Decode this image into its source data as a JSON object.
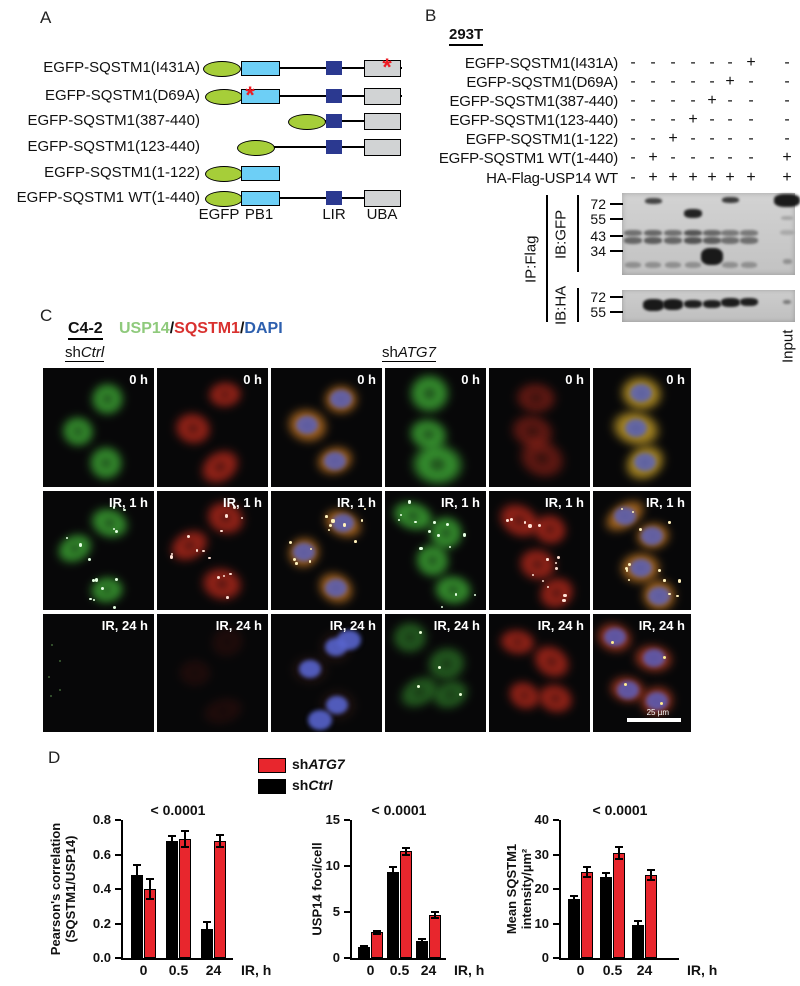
{
  "figure": {
    "panel_a": {
      "label": "A",
      "mutation_marker": "*",
      "constructs": [
        {
          "label": "EGFP-SQSTM1(I431A)",
          "egfp_x": 203,
          "pb1": true,
          "pb1_ast": false,
          "lir": true,
          "uba": true,
          "uba_ast": true,
          "line": [
            260,
            402
          ]
        },
        {
          "label": "EGFP-SQSTM1(D69A)",
          "egfp_x": 205,
          "pb1": true,
          "pb1_ast": true,
          "lir": true,
          "uba": true,
          "uba_ast": false,
          "line": [
            260,
            402
          ]
        },
        {
          "label": "EGFP-SQSTM1(387-440)",
          "egfp_x": 288,
          "pb1": false,
          "pb1_ast": false,
          "lir": true,
          "uba": true,
          "uba_ast": false,
          "line": [
            300,
            370
          ]
        },
        {
          "label": "EGFP-SQSTM1(123-440)",
          "egfp_x": 237,
          "pb1": false,
          "pb1_ast": false,
          "lir": true,
          "uba": true,
          "uba_ast": false,
          "line": [
            260,
            370
          ]
        },
        {
          "label": "EGFP-SQSTM1(1-122)",
          "egfp_x": 205,
          "pb1": true,
          "pb1_ast": false,
          "lir": false,
          "uba": false,
          "uba_ast": false,
          "line": null
        },
        {
          "label": "EGFP-SQSTM1 WT(1-440)",
          "egfp_x": 205,
          "pb1": true,
          "pb1_ast": false,
          "lir": true,
          "uba": true,
          "uba_ast": false,
          "line": [
            260,
            370
          ]
        }
      ],
      "domain_labels": [
        "EGFP",
        "PB1",
        "LIR",
        "UBA"
      ],
      "colors": {
        "egfp": "#a6ce39",
        "pb1": "#6dcff6",
        "lir": "#2b3990",
        "uba": "#d1d3d4",
        "asterisk": "#ed1c24"
      }
    },
    "panel_b": {
      "label": "B",
      "cell_line": "293T",
      "rows": [
        {
          "label": "EGFP-SQSTM1(I431A)",
          "lanes": [
            "-",
            "-",
            "-",
            "-",
            "-",
            "-",
            "+"
          ],
          "input": "-"
        },
        {
          "label": "EGFP-SQSTM1(D69A)",
          "lanes": [
            "-",
            "-",
            "-",
            "-",
            "-",
            "+",
            "-"
          ],
          "input": "-"
        },
        {
          "label": "EGFP-SQSTM1(387-440)",
          "lanes": [
            "-",
            "-",
            "-",
            "-",
            "+",
            "-",
            "-"
          ],
          "input": "-"
        },
        {
          "label": "EGFP-SQSTM1(123-440)",
          "lanes": [
            "-",
            "-",
            "-",
            "+",
            "-",
            "-",
            "-"
          ],
          "input": "-"
        },
        {
          "label": "EGFP-SQSTM1(1-122)",
          "lanes": [
            "-",
            "-",
            "+",
            "-",
            "-",
            "-",
            "-"
          ],
          "input": "-"
        },
        {
          "label": "EGFP-SQSTM1 WT(1-440)",
          "lanes": [
            "-",
            "+",
            "-",
            "-",
            "-",
            "-",
            "-"
          ],
          "input": "+"
        },
        {
          "label": "HA-Flag-USP14 WT",
          "lanes": [
            "-",
            "+",
            "+",
            "+",
            "+",
            "+",
            "+"
          ],
          "input": "+"
        }
      ],
      "ip_label": "IP:Flag",
      "input_label": "Input",
      "blots": [
        {
          "ib": "IB:GFP",
          "mw": [
            "72",
            "55",
            "43",
            "34"
          ]
        },
        {
          "ib": "IB:HA",
          "mw": [
            "72",
            "55"
          ]
        }
      ],
      "gfp_bands": [
        {
          "lane": 2,
          "y": 5,
          "w": 17,
          "h": 6,
          "o": 0.75
        },
        {
          "lane": 6,
          "y": 4,
          "w": 17,
          "h": 6,
          "o": 0.8
        },
        {
          "lane": 8,
          "y": 1,
          "w": 26,
          "h": 13,
          "o": 0.97
        },
        {
          "lane": 4,
          "y": 16,
          "w": 18,
          "h": 9,
          "o": 0.93
        },
        {
          "lane": 1,
          "y": 37,
          "w": 18,
          "h": 6,
          "o": 0.5
        },
        {
          "lane": 1,
          "y": 44,
          "w": 18,
          "h": 7,
          "o": 0.55
        },
        {
          "lane": 2,
          "y": 37,
          "w": 18,
          "h": 6,
          "o": 0.55
        },
        {
          "lane": 2,
          "y": 44,
          "w": 18,
          "h": 7,
          "o": 0.6
        },
        {
          "lane": 3,
          "y": 37,
          "w": 18,
          "h": 6,
          "o": 0.5
        },
        {
          "lane": 3,
          "y": 44,
          "w": 18,
          "h": 7,
          "o": 0.55
        },
        {
          "lane": 4,
          "y": 37,
          "w": 18,
          "h": 6,
          "o": 0.65
        },
        {
          "lane": 4,
          "y": 44,
          "w": 18,
          "h": 7,
          "o": 0.65
        },
        {
          "lane": 5,
          "y": 37,
          "w": 18,
          "h": 6,
          "o": 0.55
        },
        {
          "lane": 5,
          "y": 44,
          "w": 18,
          "h": 7,
          "o": 0.6
        },
        {
          "lane": 6,
          "y": 37,
          "w": 18,
          "h": 6,
          "o": 0.45
        },
        {
          "lane": 6,
          "y": 44,
          "w": 18,
          "h": 7,
          "o": 0.5
        },
        {
          "lane": 7,
          "y": 37,
          "w": 18,
          "h": 6,
          "o": 0.45
        },
        {
          "lane": 7,
          "y": 44,
          "w": 18,
          "h": 7,
          "o": 0.5
        },
        {
          "lane": 8,
          "y": 23,
          "w": 12,
          "h": 4,
          "o": 0.22
        },
        {
          "lane": 8,
          "y": 37,
          "w": 14,
          "h": 5,
          "o": 0.18
        },
        {
          "lane": 5,
          "y": 55,
          "w": 22,
          "h": 17,
          "o": 0.98
        },
        {
          "lane": 1,
          "y": 69,
          "w": 16,
          "h": 6,
          "o": 0.3
        },
        {
          "lane": 2,
          "y": 69,
          "w": 16,
          "h": 6,
          "o": 0.3
        },
        {
          "lane": 3,
          "y": 69,
          "w": 16,
          "h": 6,
          "o": 0.3
        },
        {
          "lane": 4,
          "y": 69,
          "w": 16,
          "h": 6,
          "o": 0.3
        },
        {
          "lane": 6,
          "y": 69,
          "w": 16,
          "h": 6,
          "o": 0.3
        },
        {
          "lane": 7,
          "y": 69,
          "w": 16,
          "h": 6,
          "o": 0.3
        },
        {
          "lane": 8,
          "y": 66,
          "w": 9,
          "h": 5,
          "o": 0.3
        }
      ],
      "ha_bands": [
        {
          "lane": 2,
          "y": 9,
          "w": 21,
          "h": 12,
          "o": 0.98
        },
        {
          "lane": 3,
          "y": 9,
          "w": 20,
          "h": 11,
          "o": 0.98
        },
        {
          "lane": 4,
          "y": 10,
          "w": 18,
          "h": 8,
          "o": 0.95
        },
        {
          "lane": 5,
          "y": 10,
          "w": 18,
          "h": 8,
          "o": 0.95
        },
        {
          "lane": 6,
          "y": 8,
          "w": 19,
          "h": 9,
          "o": 0.96
        },
        {
          "lane": 7,
          "y": 8,
          "w": 18,
          "h": 8,
          "o": 0.95
        },
        {
          "lane": 8,
          "y": 10,
          "w": 8,
          "h": 4,
          "o": 0.45
        }
      ]
    },
    "panel_c": {
      "label": "C",
      "cell_line": "C4-2",
      "stain_separator": "/",
      "stains": [
        {
          "text": "USP14",
          "color": "#8fca7c"
        },
        {
          "text": "SQSTM1",
          "color": "#d9312f"
        },
        {
          "text": "DAPI",
          "color": "#2d5fae"
        }
      ],
      "groups": [
        {
          "prefix": "sh",
          "gene": "Ctrl"
        },
        {
          "prefix": "sh",
          "gene": "ATG7"
        }
      ],
      "time_labels": [
        "0 h",
        "IR, 1 h",
        "IR, 24 h"
      ],
      "scale_bar_label": "25 µm"
    },
    "panel_d": {
      "label": "D",
      "legend": [
        {
          "prefix": "sh",
          "gene": "ATG7",
          "color": "#e8262d"
        },
        {
          "prefix": "sh",
          "gene": "Ctrl",
          "color": "#000000"
        }
      ]
    }
  },
  "chart_data": [
    {
      "type": "bar",
      "title": "< 0.0001",
      "ylabel": "Pearson's correlation\n(SQSTM1/USP14)",
      "xlabel": "IR, h",
      "categories": [
        "0",
        "0.5",
        "24"
      ],
      "ylim": [
        0,
        0.8
      ],
      "yticks": [
        "0.0",
        "0.2",
        "0.4",
        "0.6",
        "0.8"
      ],
      "series": [
        {
          "name": "shCtrl",
          "color": "#000000",
          "values": [
            0.48,
            0.68,
            0.17
          ],
          "errors": [
            0.06,
            0.03,
            0.04
          ]
        },
        {
          "name": "shATG7",
          "color": "#e8262d",
          "values": [
            0.4,
            0.69,
            0.68
          ],
          "errors": [
            0.06,
            0.045,
            0.035
          ]
        }
      ]
    },
    {
      "type": "bar",
      "title": "< 0.0001",
      "ylabel": "USP14 foci/cell",
      "xlabel": "IR, h",
      "categories": [
        "0",
        "0.5",
        "24"
      ],
      "ylim": [
        0,
        15
      ],
      "yticks": [
        "0",
        "5",
        "10",
        "15"
      ],
      "series": [
        {
          "name": "shCtrl",
          "color": "#000000",
          "values": [
            1.2,
            9.4,
            1.9
          ],
          "errors": [
            0.1,
            0.5,
            0.15
          ]
        },
        {
          "name": "shATG7",
          "color": "#e8262d",
          "values": [
            2.8,
            11.6,
            4.7
          ],
          "errors": [
            0.15,
            0.4,
            0.35
          ]
        }
      ]
    },
    {
      "type": "bar",
      "title": "< 0.0001",
      "ylabel": "Mean SQSTM1\nintensity/µm²",
      "xlabel": "IR, h",
      "categories": [
        "0",
        "0.5",
        "24"
      ],
      "ylim": [
        0,
        40
      ],
      "yticks": [
        "0",
        "10",
        "20",
        "30",
        "40"
      ],
      "series": [
        {
          "name": "shCtrl",
          "color": "#000000",
          "values": [
            17,
            23.5,
            9.5
          ],
          "errors": [
            1,
            1,
            1.2
          ]
        },
        {
          "name": "shATG7",
          "color": "#e8262d",
          "values": [
            25,
            30.5,
            24
          ],
          "errors": [
            1.5,
            1.8,
            1.5
          ]
        }
      ]
    }
  ]
}
